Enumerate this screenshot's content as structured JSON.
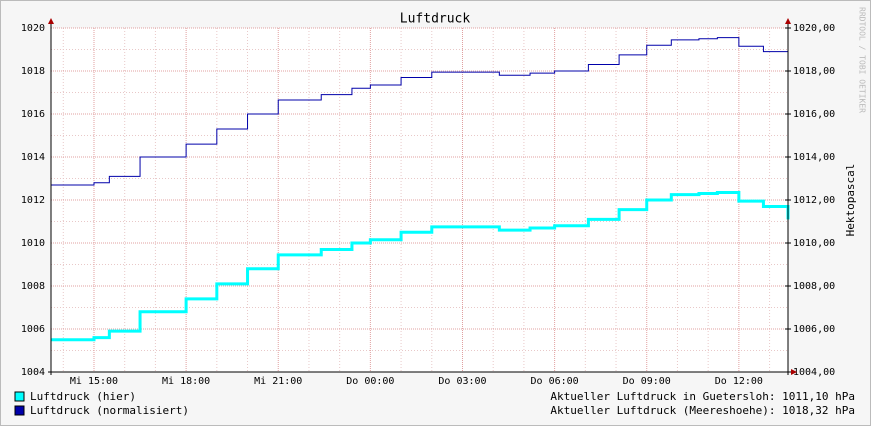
{
  "chart_data": {
    "type": "line",
    "title": "Luftdruck",
    "y2_label": "Hektopascal",
    "watermark": "RRDTOOL / TOBI OETIKER",
    "x": [
      13.6,
      15,
      15.5,
      16.5,
      18,
      19,
      20,
      21,
      22.4,
      23.4,
      24,
      25,
      26,
      27,
      28.2,
      29.2,
      30,
      31.1,
      32.1,
      33,
      33.8,
      34.7,
      35.3,
      36,
      36.8,
      37.6
    ],
    "series": [
      {
        "name": "Luftdruck (hier)",
        "color": "#00ffff",
        "width": 3,
        "values": [
          1005.5,
          1005.6,
          1005.9,
          1006.8,
          1007.4,
          1008.1,
          1008.8,
          1009.45,
          1009.7,
          1010.0,
          1010.15,
          1010.5,
          1010.75,
          1010.75,
          1010.6,
          1010.7,
          1010.8,
          1011.1,
          1011.55,
          1012.0,
          1012.25,
          1012.3,
          1012.35,
          1011.95,
          1011.7,
          1011.1
        ]
      },
      {
        "name": "Luftdruck (normalisiert)",
        "color": "#0000aa",
        "width": 1,
        "values": [
          1012.7,
          1012.8,
          1013.1,
          1014.0,
          1014.6,
          1015.3,
          1016.0,
          1016.65,
          1016.9,
          1017.2,
          1017.35,
          1017.7,
          1017.95,
          1017.95,
          1017.8,
          1017.9,
          1018.0,
          1018.3,
          1018.75,
          1019.2,
          1019.45,
          1019.5,
          1019.55,
          1019.15,
          1018.9,
          1018.35
        ]
      }
    ],
    "xlim": [
      13.6,
      37.6
    ],
    "xticks": [
      {
        "value": 15,
        "label": "Mi 15:00"
      },
      {
        "value": 18,
        "label": "Mi 18:00"
      },
      {
        "value": 21,
        "label": "Mi 21:00"
      },
      {
        "value": 24,
        "label": "Do 00:00"
      },
      {
        "value": 27,
        "label": "Do 03:00"
      },
      {
        "value": 30,
        "label": "Do 06:00"
      },
      {
        "value": 33,
        "label": "Do 09:00"
      },
      {
        "value": 36,
        "label": "Do 12:00"
      }
    ],
    "ylim": [
      1004,
      1020
    ],
    "yticks": [
      1004,
      1006,
      1008,
      1010,
      1012,
      1014,
      1016,
      1018,
      1020
    ],
    "y2lim": [
      1004,
      1020
    ],
    "y2ticks": [
      {
        "value": 1004,
        "label": "1004,00"
      },
      {
        "value": 1006,
        "label": "1006,00"
      },
      {
        "value": 1008,
        "label": "1008,00"
      },
      {
        "value": 1010,
        "label": "1010,00"
      },
      {
        "value": 1012,
        "label": "1012,00"
      },
      {
        "value": 1014,
        "label": "1014,00"
      },
      {
        "value": 1016,
        "label": "1016,00"
      },
      {
        "value": 1018,
        "label": "1018,00"
      },
      {
        "value": 1020,
        "label": "1020,00"
      }
    ],
    "grid": true,
    "status": [
      "Aktueller Luftdruck in Guetersloh: 1011,10 hPa",
      "Aktueller Luftdruck (Meereshoehe): 1018,32 hPa"
    ]
  }
}
